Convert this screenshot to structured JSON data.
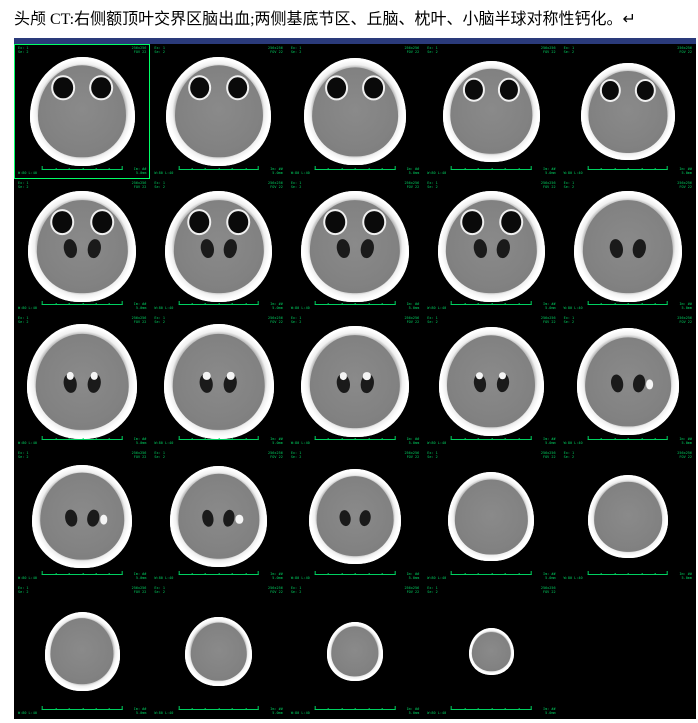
{
  "header": {
    "text": "头颅 CT:右侧额顶叶交界区脑出血;两侧基底节区、丘脑、枕叶、小脑半球对称性钙化。↵"
  },
  "viewer": {
    "background_color": "#000000",
    "top_bar_color": "#2a3a7a",
    "selected_border_color": "#00ff66",
    "annotation_color": "#00d060",
    "grid": {
      "rows": 5,
      "cols": 5
    },
    "images": [
      {
        "row": 0,
        "col": 0,
        "selected": true,
        "size": 0.78,
        "features": [
          "orbits"
        ],
        "anno": {
          "tl": "A",
          "tr": "B",
          "bl": "C",
          "br": "D"
        }
      },
      {
        "row": 0,
        "col": 1,
        "selected": false,
        "size": 0.78,
        "features": [
          "orbits"
        ],
        "anno": {
          "tl": "A",
          "tr": "B",
          "bl": "C",
          "br": "D"
        }
      },
      {
        "row": 0,
        "col": 2,
        "selected": false,
        "size": 0.76,
        "features": [
          "orbits"
        ],
        "anno": {
          "tl": "A",
          "tr": "B",
          "bl": "C",
          "br": "D"
        }
      },
      {
        "row": 0,
        "col": 3,
        "selected": false,
        "size": 0.72,
        "features": [
          "orbits"
        ],
        "anno": {
          "tl": "A",
          "tr": "B",
          "bl": "C",
          "br": "D"
        }
      },
      {
        "row": 0,
        "col": 4,
        "selected": false,
        "size": 0.7,
        "features": [
          "orbits"
        ],
        "anno": {
          "tl": "A",
          "tr": "B",
          "bl": "C",
          "br": "D"
        }
      },
      {
        "row": 1,
        "col": 0,
        "selected": false,
        "size": 0.8,
        "features": [
          "orbits",
          "vent"
        ],
        "anno": {
          "tl": "A",
          "tr": "B",
          "bl": "C",
          "br": "D"
        }
      },
      {
        "row": 1,
        "col": 1,
        "selected": false,
        "size": 0.8,
        "features": [
          "orbits",
          "vent"
        ],
        "anno": {
          "tl": "A",
          "tr": "B",
          "bl": "C",
          "br": "D"
        }
      },
      {
        "row": 1,
        "col": 2,
        "selected": false,
        "size": 0.8,
        "features": [
          "orbits",
          "vent"
        ],
        "anno": {
          "tl": "A",
          "tr": "B",
          "bl": "C",
          "br": "D"
        }
      },
      {
        "row": 1,
        "col": 3,
        "selected": false,
        "size": 0.8,
        "features": [
          "orbits",
          "vent"
        ],
        "anno": {
          "tl": "A",
          "tr": "B",
          "bl": "C",
          "br": "D"
        }
      },
      {
        "row": 1,
        "col": 4,
        "selected": false,
        "size": 0.8,
        "features": [
          "vent"
        ],
        "anno": {
          "tl": "A",
          "tr": "B",
          "bl": "C",
          "br": "D"
        }
      },
      {
        "row": 2,
        "col": 0,
        "selected": false,
        "size": 0.82,
        "features": [
          "vent",
          "calc"
        ],
        "anno": {
          "tl": "A",
          "tr": "B",
          "bl": "C",
          "br": "D"
        }
      },
      {
        "row": 2,
        "col": 1,
        "selected": false,
        "size": 0.82,
        "features": [
          "vent",
          "calc"
        ],
        "anno": {
          "tl": "A",
          "tr": "B",
          "bl": "C",
          "br": "D"
        }
      },
      {
        "row": 2,
        "col": 2,
        "selected": false,
        "size": 0.8,
        "features": [
          "vent",
          "calc"
        ],
        "anno": {
          "tl": "A",
          "tr": "B",
          "bl": "C",
          "br": "D"
        }
      },
      {
        "row": 2,
        "col": 3,
        "selected": false,
        "size": 0.78,
        "features": [
          "vent",
          "calc"
        ],
        "anno": {
          "tl": "A",
          "tr": "B",
          "bl": "C",
          "br": "D"
        }
      },
      {
        "row": 2,
        "col": 4,
        "selected": false,
        "size": 0.76,
        "features": [
          "vent",
          "hem"
        ],
        "anno": {
          "tl": "A",
          "tr": "B",
          "bl": "C",
          "br": "D"
        }
      },
      {
        "row": 3,
        "col": 0,
        "selected": false,
        "size": 0.74,
        "features": [
          "vent",
          "hem"
        ],
        "anno": {
          "tl": "A",
          "tr": "B",
          "bl": "C",
          "br": "D"
        }
      },
      {
        "row": 3,
        "col": 1,
        "selected": false,
        "size": 0.72,
        "features": [
          "vent",
          "hem"
        ],
        "anno": {
          "tl": "A",
          "tr": "B",
          "bl": "C",
          "br": "D"
        }
      },
      {
        "row": 3,
        "col": 2,
        "selected": false,
        "size": 0.68,
        "features": [
          "vent"
        ],
        "anno": {
          "tl": "A",
          "tr": "B",
          "bl": "C",
          "br": "D"
        }
      },
      {
        "row": 3,
        "col": 3,
        "selected": false,
        "size": 0.64,
        "features": [],
        "anno": {
          "tl": "A",
          "tr": "B",
          "bl": "C",
          "br": "D"
        }
      },
      {
        "row": 3,
        "col": 4,
        "selected": false,
        "size": 0.6,
        "features": [],
        "anno": {
          "tl": "A",
          "tr": "B",
          "bl": "C",
          "br": "D"
        }
      },
      {
        "row": 4,
        "col": 0,
        "selected": false,
        "size": 0.56,
        "features": [],
        "anno": {
          "tl": "A",
          "tr": "B",
          "bl": "C",
          "br": "D"
        }
      },
      {
        "row": 4,
        "col": 1,
        "selected": false,
        "size": 0.5,
        "features": [],
        "anno": {
          "tl": "A",
          "tr": "B",
          "bl": "C",
          "br": "D"
        }
      },
      {
        "row": 4,
        "col": 2,
        "selected": false,
        "size": 0.42,
        "features": [],
        "anno": {
          "tl": "A",
          "tr": "B",
          "bl": "C",
          "br": "D"
        }
      },
      {
        "row": 4,
        "col": 3,
        "selected": false,
        "size": 0.34,
        "features": [],
        "anno": {
          "tl": "A",
          "tr": "B",
          "bl": "C",
          "br": "D"
        }
      },
      {
        "row": 4,
        "col": 4,
        "empty": true
      }
    ],
    "annotation_placeholders": {
      "tl": "Ex: 1\nSe: 2",
      "tr": "256x256\nFOV 22",
      "bl": "W:80 L:40",
      "br": "Im: ##\n5.0mm"
    }
  },
  "colors": {
    "page_bg": "#ffffff",
    "text": "#000000",
    "skull_white": "#ffffff",
    "brain_gray": "#888888",
    "csf_dark": "#1a1a1a",
    "hyperdense": "#f5f5f5"
  }
}
